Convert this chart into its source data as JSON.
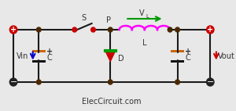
{
  "bg_color": "#e8e8e8",
  "wire_color": "#1a1a1a",
  "node_color": "#4a2800",
  "plus_color": "#cc0000",
  "minus_color": "#222222",
  "switch_color": "#cc0000",
  "inductor_color": "#ff00ff",
  "diode_body_color": "#cc0000",
  "diode_bar_color": "#009900",
  "cap_plate_color": "#cc6600",
  "cap_black_color": "#111111",
  "arrow_color": "#0000cc",
  "arrow_out_color": "#cc0000",
  "vl_arrow_color": "#009900",
  "label_color": "#333333",
  "website_color": "#333333",
  "title": "ElecCircuit.com",
  "Vin_label": "Vin",
  "Vout_label": "Vout",
  "VL_label": "V",
  "VL_sub": "L",
  "L_label": "L",
  "C_label": "C",
  "D_label": "D",
  "S_label": "S",
  "P_label": "P",
  "figsize": [
    3.0,
    1.42
  ],
  "dpi": 100
}
